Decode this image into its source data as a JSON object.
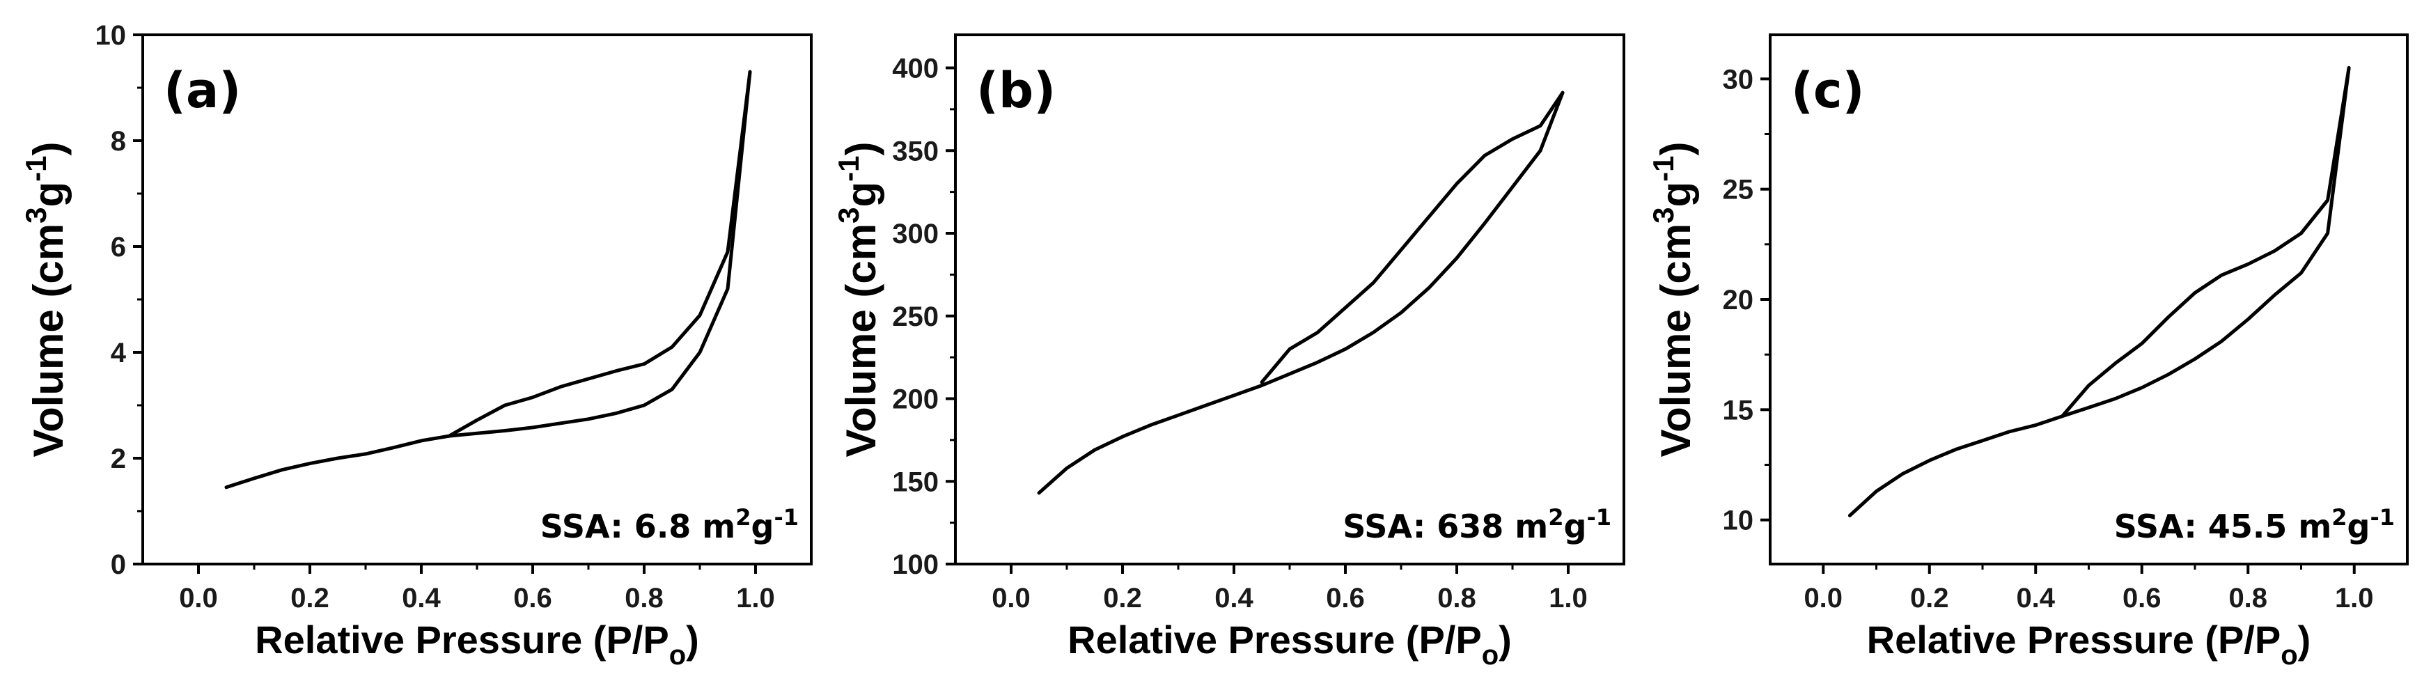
{
  "figure": {
    "background": "#ffffff",
    "line_color": "#000000"
  },
  "chart_data": [
    {
      "panel": "(a)",
      "type": "line",
      "xlabel_main": "Relative Pressure (P/P",
      "xlabel_sub": "o",
      "xlabel_end": ")",
      "ylabel_main": "Volume (cm",
      "ylabel_sup1": "3",
      "ylabel_mid": "g",
      "ylabel_sup2": "-1",
      "ylabel_end": ")",
      "xlim": [
        -0.1,
        1.1
      ],
      "ylim": [
        0,
        10
      ],
      "xticks": [
        "0.0",
        "0.2",
        "0.4",
        "0.6",
        "0.8",
        "1.0"
      ],
      "yticks": [
        "0",
        "2",
        "4",
        "6",
        "8",
        "10"
      ],
      "annotation_main": "SSA: 6.8 m",
      "annotation_sup1": "2",
      "annotation_mid": "g",
      "annotation_sup2": "-1",
      "series": [
        {
          "x": [
            0.05,
            0.1,
            0.15,
            0.2,
            0.25,
            0.3,
            0.35,
            0.4,
            0.45,
            0.5,
            0.55,
            0.6,
            0.65,
            0.7,
            0.75,
            0.8,
            0.85,
            0.9,
            0.95,
            0.99
          ],
          "y": [
            1.45,
            1.62,
            1.78,
            1.9,
            2.0,
            2.08,
            2.2,
            2.33,
            2.42,
            2.47,
            2.52,
            2.58,
            2.66,
            2.74,
            2.85,
            3.0,
            3.3,
            4.0,
            5.2,
            9.3
          ]
        },
        {
          "x": [
            0.99,
            0.95,
            0.9,
            0.85,
            0.8,
            0.75,
            0.7,
            0.65,
            0.6,
            0.55,
            0.5,
            0.45
          ],
          "y": [
            9.3,
            5.9,
            4.7,
            4.1,
            3.78,
            3.65,
            3.5,
            3.35,
            3.15,
            3.0,
            2.72,
            2.42
          ]
        }
      ]
    },
    {
      "panel": "(b)",
      "type": "line",
      "xlabel_main": "Relative Pressure (P/P",
      "xlabel_sub": "o",
      "xlabel_end": ")",
      "ylabel_main": "Volume (cm",
      "ylabel_sup1": "3",
      "ylabel_mid": "g",
      "ylabel_sup2": "-1",
      "ylabel_end": ")",
      "xlim": [
        -0.1,
        1.1
      ],
      "ylim": [
        100,
        420
      ],
      "xticks": [
        "0.0",
        "0.2",
        "0.4",
        "0.6",
        "0.8",
        "1.0"
      ],
      "yticks": [
        "100",
        "150",
        "200",
        "250",
        "300",
        "350",
        "400"
      ],
      "annotation_main": "SSA: 638 m",
      "annotation_sup1": "2",
      "annotation_mid": "g",
      "annotation_sup2": "-1",
      "series": [
        {
          "x": [
            0.05,
            0.1,
            0.15,
            0.2,
            0.25,
            0.3,
            0.35,
            0.4,
            0.45,
            0.5,
            0.55,
            0.6,
            0.65,
            0.7,
            0.75,
            0.8,
            0.85,
            0.9,
            0.95,
            0.99
          ],
          "y": [
            143,
            158,
            169,
            177,
            184,
            190,
            196,
            202,
            208,
            215,
            222,
            230,
            240,
            252,
            267,
            285,
            306,
            328,
            350,
            385
          ]
        },
        {
          "x": [
            0.99,
            0.95,
            0.9,
            0.85,
            0.8,
            0.75,
            0.7,
            0.65,
            0.6,
            0.55,
            0.5,
            0.45
          ],
          "y": [
            385,
            365,
            357,
            347,
            330,
            310,
            290,
            270,
            255,
            240,
            230,
            210
          ]
        }
      ]
    },
    {
      "panel": "(c)",
      "type": "line",
      "xlabel_main": "Relative Pressure (P/P",
      "xlabel_sub": "o",
      "xlabel_end": ")",
      "ylabel_main": "Volume (cm",
      "ylabel_sup1": "3",
      "ylabel_mid": "g",
      "ylabel_sup2": "-1",
      "ylabel_end": ")",
      "xlim": [
        -0.1,
        1.1
      ],
      "ylim": [
        8,
        32
      ],
      "xticks": [
        "0.0",
        "0.2",
        "0.4",
        "0.6",
        "0.8",
        "1.0"
      ],
      "yticks": [
        "10",
        "15",
        "20",
        "25",
        "30"
      ],
      "annotation_main": "SSA: 45.5 m",
      "annotation_sup1": "2",
      "annotation_mid": "g",
      "annotation_sup2": "-1",
      "series": [
        {
          "x": [
            0.05,
            0.1,
            0.15,
            0.2,
            0.25,
            0.3,
            0.35,
            0.4,
            0.45,
            0.5,
            0.55,
            0.6,
            0.65,
            0.7,
            0.75,
            0.8,
            0.85,
            0.9,
            0.95,
            0.99
          ],
          "y": [
            10.2,
            11.3,
            12.1,
            12.7,
            13.2,
            13.6,
            14.0,
            14.3,
            14.7,
            15.1,
            15.5,
            16.0,
            16.6,
            17.3,
            18.1,
            19.1,
            20.2,
            21.2,
            23.0,
            30.5
          ]
        },
        {
          "x": [
            0.99,
            0.95,
            0.9,
            0.85,
            0.8,
            0.75,
            0.7,
            0.65,
            0.6,
            0.55,
            0.5,
            0.45
          ],
          "y": [
            30.5,
            24.5,
            23.0,
            22.2,
            21.6,
            21.1,
            20.3,
            19.2,
            18.0,
            17.1,
            16.1,
            14.7
          ]
        }
      ]
    }
  ]
}
